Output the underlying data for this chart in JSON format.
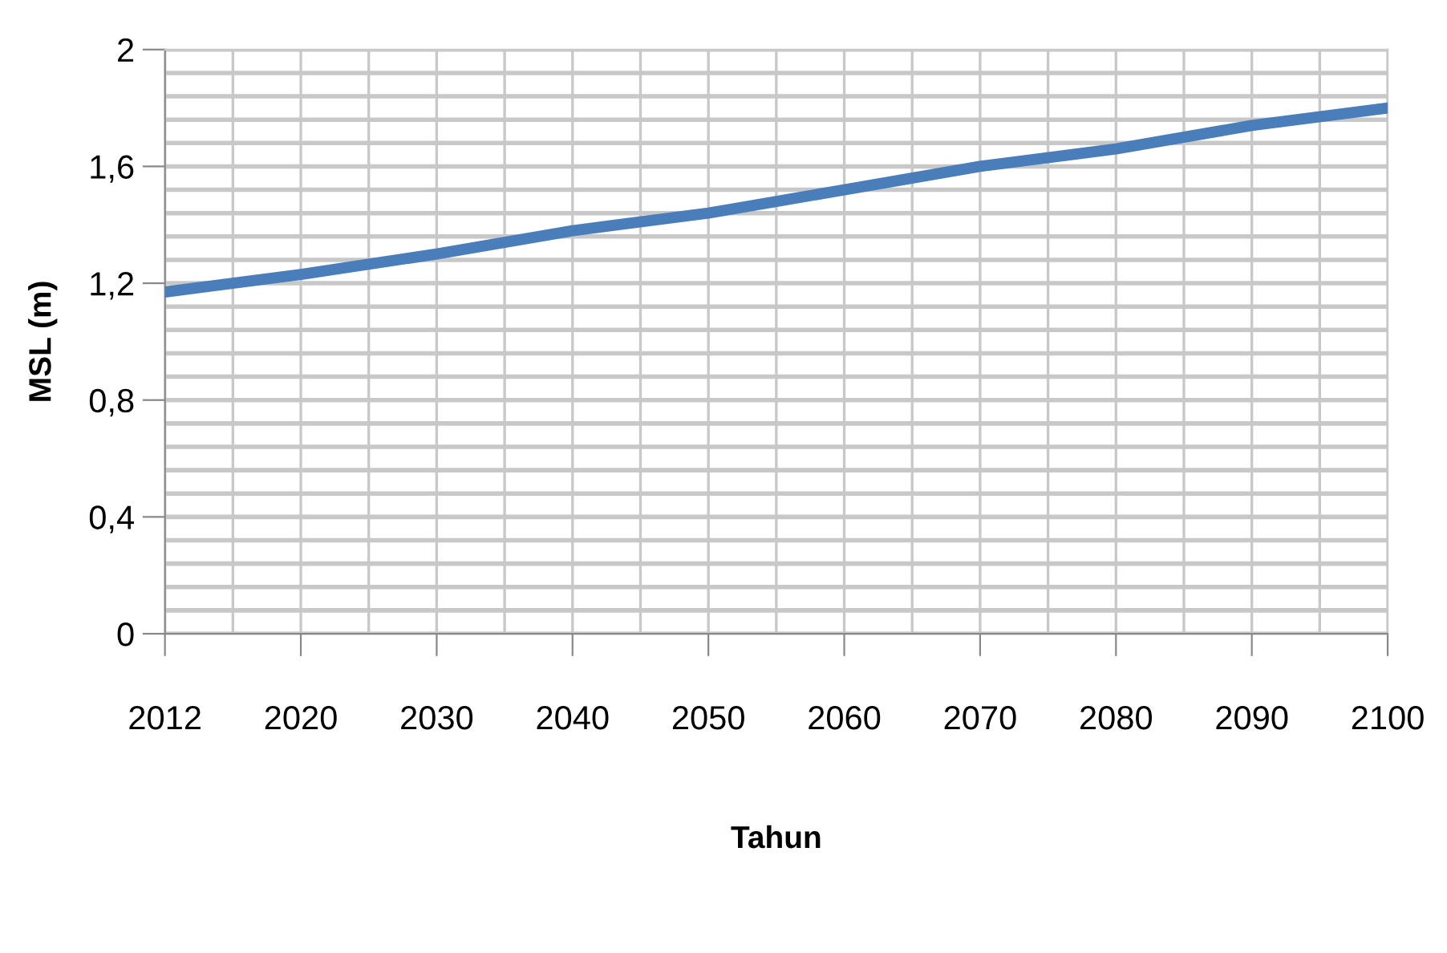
{
  "chart_data": {
    "type": "line",
    "xlabel": "Tahun",
    "ylabel": "MSL (m)",
    "categories": [
      "2012",
      "2020",
      "2030",
      "2040",
      "2050",
      "2060",
      "2070",
      "2080",
      "2090",
      "2100"
    ],
    "series": [
      {
        "color": "#4a7ebb",
        "values": [
          1.17,
          1.23,
          1.3,
          1.38,
          1.44,
          1.52,
          1.6,
          1.66,
          1.74,
          1.8
        ]
      }
    ],
    "ylim": [
      0,
      2
    ],
    "yticks": [
      0,
      {
        "value": 0.4,
        "label": "0,4"
      },
      {
        "value": 0.8,
        "label": "0,8"
      },
      {
        "value": 1.2,
        "label": "1,2"
      },
      {
        "value": 1.6,
        "label": "1,6"
      },
      2
    ],
    "grid": true,
    "marker": "none",
    "line_style": "solid"
  }
}
